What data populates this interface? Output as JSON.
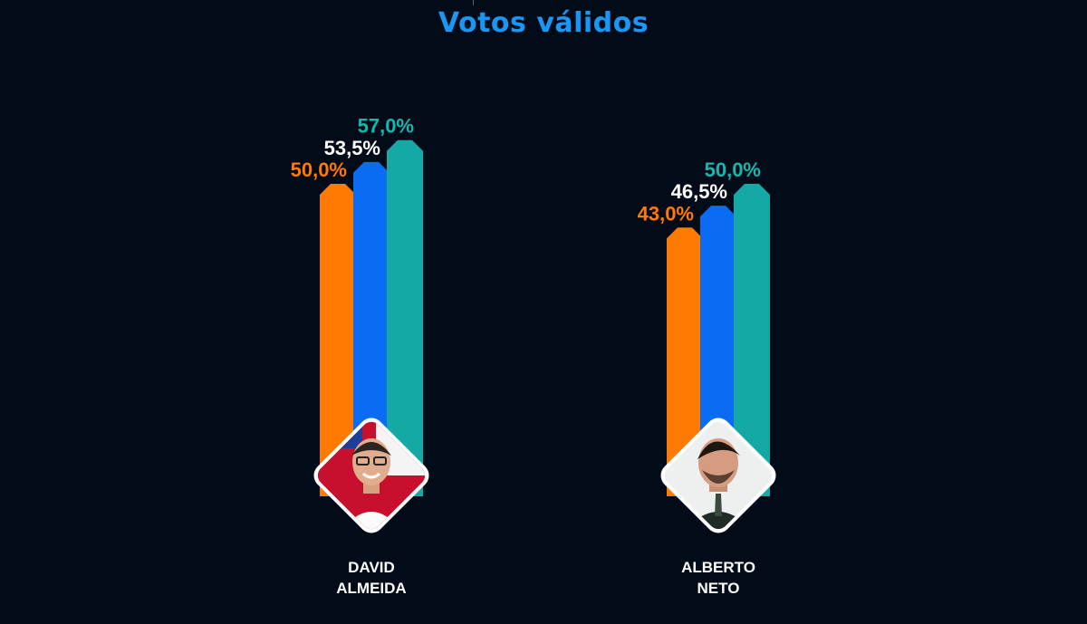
{
  "chart_data": {
    "type": "bar",
    "title": "Votos válidos",
    "categories": [
      {
        "line1": "DAVID",
        "line2": "ALMEIDA"
      },
      {
        "line1": "ALBERTO",
        "line2": "NETO"
      }
    ],
    "series": [
      {
        "values": [
          50.0,
          43.0
        ],
        "labels": [
          "50,0%",
          "43,0%"
        ],
        "color": "#ff7a00",
        "label_color": "#ff7a00"
      },
      {
        "values": [
          53.5,
          46.5
        ],
        "labels": [
          "53,5%",
          "46,5%"
        ],
        "color": "#0a6cf2",
        "label_color": "#ffffff"
      },
      {
        "values": [
          57.0,
          50.0
        ],
        "labels": [
          "57,0%",
          "50,0%"
        ],
        "color": "#14a9a4",
        "label_color": "#14b8ae"
      }
    ],
    "ylim": [
      0,
      60
    ],
    "legend": "none",
    "grid": false
  },
  "colors": {
    "background": "#020b18",
    "title": "#1a97f5",
    "photo_border": "#ffffff"
  },
  "photos": [
    {
      "icon": "candidate-photo-david-almeida"
    },
    {
      "icon": "candidate-photo-alberto-neto"
    }
  ]
}
